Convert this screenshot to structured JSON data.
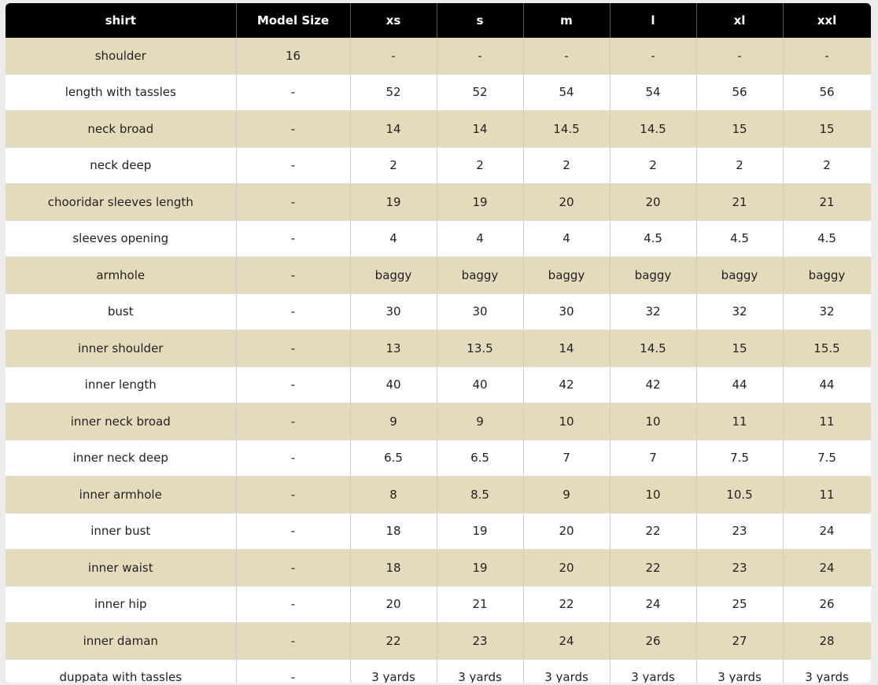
{
  "table": {
    "header": [
      "shirt",
      "Model Size",
      "xs",
      "s",
      "m",
      "l",
      "xl",
      "xxl"
    ],
    "rows": [
      [
        "shoulder",
        "16",
        "-",
        "-",
        "-",
        "-",
        "-",
        "-"
      ],
      [
        "length with tassles",
        "-",
        "52",
        "52",
        "54",
        "54",
        "56",
        "56"
      ],
      [
        "neck broad",
        "-",
        "14",
        "14",
        "14.5",
        "14.5",
        "15",
        "15"
      ],
      [
        "neck deep",
        "-",
        "2",
        "2",
        "2",
        "2",
        "2",
        "2"
      ],
      [
        "chooridar sleeves length",
        "-",
        "19",
        "19",
        "20",
        "20",
        "21",
        "21"
      ],
      [
        "sleeves opening",
        "-",
        "4",
        "4",
        "4",
        "4.5",
        "4.5",
        "4.5"
      ],
      [
        "armhole",
        "-",
        "baggy",
        "baggy",
        "baggy",
        "baggy",
        "baggy",
        "baggy"
      ],
      [
        "bust",
        "-",
        "30",
        "30",
        "30",
        "32",
        "32",
        "32"
      ],
      [
        "inner shoulder",
        "-",
        "13",
        "13.5",
        "14",
        "14.5",
        "15",
        "15.5"
      ],
      [
        "inner length",
        "-",
        "40",
        "40",
        "42",
        "42",
        "44",
        "44"
      ],
      [
        "inner neck broad",
        "-",
        "9",
        "9",
        "10",
        "10",
        "11",
        "11"
      ],
      [
        "inner neck deep",
        "-",
        "6.5",
        "6.5",
        "7",
        "7",
        "7.5",
        "7.5"
      ],
      [
        "inner armhole",
        "-",
        "8",
        "8.5",
        "9",
        "10",
        "10.5",
        "11"
      ],
      [
        "inner bust",
        "-",
        "18",
        "19",
        "20",
        "22",
        "23",
        "24"
      ],
      [
        "inner waist",
        "-",
        "18",
        "19",
        "20",
        "22",
        "23",
        "24"
      ],
      [
        "inner hip",
        "-",
        "20",
        "21",
        "22",
        "24",
        "25",
        "26"
      ],
      [
        "inner daman",
        "-",
        "22",
        "23",
        "24",
        "26",
        "27",
        "28"
      ],
      [
        "duppata with tassles",
        "-",
        "3 yards",
        "3 yards",
        "3 yards",
        "3 yards",
        "3 yards",
        "3 yards"
      ]
    ]
  }
}
